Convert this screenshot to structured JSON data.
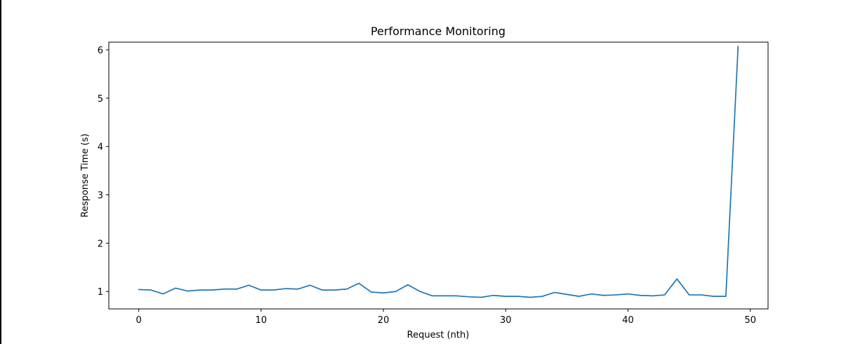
{
  "chart_data": {
    "type": "line",
    "title": "Performance Monitoring",
    "xlabel": "Request (nth)",
    "ylabel": "Response Time (s)",
    "xlim": [
      -2.45,
      51.45
    ],
    "ylim": [
      0.64,
      6.16
    ],
    "xticks": [
      0,
      10,
      20,
      30,
      40,
      50
    ],
    "yticks": [
      1,
      2,
      3,
      4,
      5,
      6
    ],
    "grid": false,
    "series": [
      {
        "color": "#1f77b4",
        "x": [
          0,
          1,
          2,
          3,
          4,
          5,
          6,
          7,
          8,
          9,
          10,
          11,
          12,
          13,
          14,
          15,
          16,
          17,
          18,
          19,
          20,
          21,
          22,
          23,
          24,
          25,
          26,
          27,
          28,
          29,
          30,
          31,
          32,
          33,
          34,
          35,
          36,
          37,
          38,
          39,
          40,
          41,
          42,
          43,
          44,
          45,
          46,
          47,
          48,
          49
        ],
        "y": [
          1.04,
          1.03,
          0.95,
          1.07,
          1.01,
          1.03,
          1.03,
          1.05,
          1.05,
          1.13,
          1.03,
          1.03,
          1.06,
          1.05,
          1.13,
          1.03,
          1.03,
          1.05,
          1.17,
          0.99,
          0.97,
          1.0,
          1.14,
          1.0,
          0.91,
          0.91,
          0.91,
          0.89,
          0.88,
          0.92,
          0.9,
          0.9,
          0.88,
          0.9,
          0.98,
          0.94,
          0.9,
          0.95,
          0.92,
          0.93,
          0.95,
          0.92,
          0.91,
          0.93,
          1.26,
          0.93,
          0.93,
          0.9,
          0.9,
          6.07
        ]
      }
    ]
  }
}
